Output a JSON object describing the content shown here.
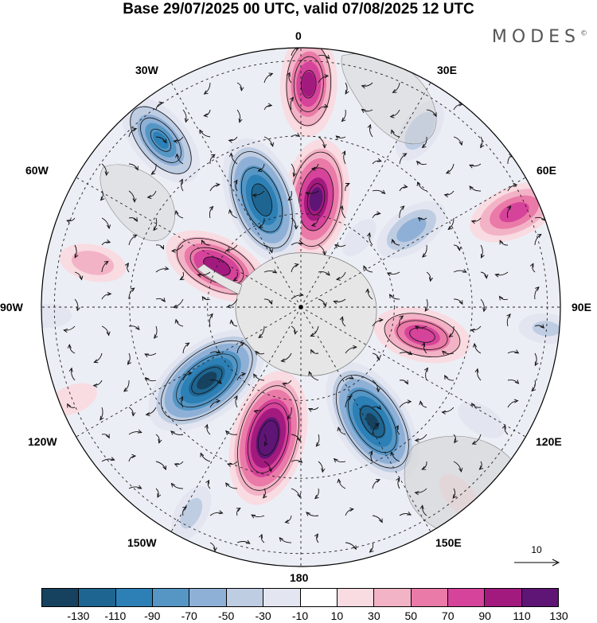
{
  "title": "Base 29/07/2025 00 UTC, valid 07/08/2025 12 UTC",
  "brand": "MODES",
  "brand_mark": "©",
  "longitude_labels": {
    "lon_0": "0",
    "lon_30e": "30E",
    "lon_60e": "60E",
    "lon_90e": "90E",
    "lon_120e": "120E",
    "lon_150e": "150E",
    "lon_180": "180",
    "lon_150w": "150W",
    "lon_120w": "120W",
    "lon_90w": "90W",
    "lon_60w": "60W",
    "lon_30w": "30W"
  },
  "vector_scale": {
    "label": "10"
  },
  "colorbar": {
    "colors": [
      "#16425f",
      "#1f6591",
      "#2d80b6",
      "#5596c5",
      "#8fb0d6",
      "#bfcde3",
      "#e3e6f0",
      "#ffffff",
      "#f9dbe2",
      "#f3b3c6",
      "#ea7aa8",
      "#d6439a",
      "#a31a7f",
      "#5e1575"
    ],
    "tick_labels": [
      "-130",
      "-110",
      "-90",
      "-70",
      "-50",
      "-30",
      "-10",
      "10",
      "30",
      "50",
      "70",
      "90",
      "110",
      "130"
    ]
  },
  "anomaly_centers": [
    {
      "lon": 2,
      "colat": 0.86,
      "value": 95
    },
    {
      "lon": 34,
      "colat": 0.82,
      "value": -45
    },
    {
      "lon": -40,
      "colat": 0.84,
      "value": -90
    },
    {
      "lon": 55,
      "colat": 0.52,
      "value": -60
    },
    {
      "lon": 66,
      "colat": 0.9,
      "value": 80
    },
    {
      "lon": 8,
      "colat": 0.42,
      "value": 115
    },
    {
      "lon": -20,
      "colat": 0.44,
      "value": -125
    },
    {
      "lon": -78,
      "colat": 0.82,
      "value": 45
    },
    {
      "lon": -64,
      "colat": 0.36,
      "value": 100
    },
    {
      "lon": -128,
      "colat": 0.46,
      "value": -135
    },
    {
      "lon": -166,
      "colat": 0.52,
      "value": 135
    },
    {
      "lon": 148,
      "colat": 0.52,
      "value": -130
    },
    {
      "lon": 103,
      "colat": 0.48,
      "value": 85
    },
    {
      "lon": 95,
      "colat": 0.95,
      "value": -30
    },
    {
      "lon": -112,
      "colat": 0.95,
      "value": 25
    },
    {
      "lon": 140,
      "colat": 0.95,
      "value": 25
    },
    {
      "lon": -152,
      "colat": 0.9,
      "value": -35
    },
    {
      "lon": 122,
      "colat": 0.82,
      "value": -25
    },
    {
      "lon": -92,
      "colat": 0.97,
      "value": -15
    },
    {
      "lon": 40,
      "colat": 0.35,
      "value": -15
    }
  ]
}
